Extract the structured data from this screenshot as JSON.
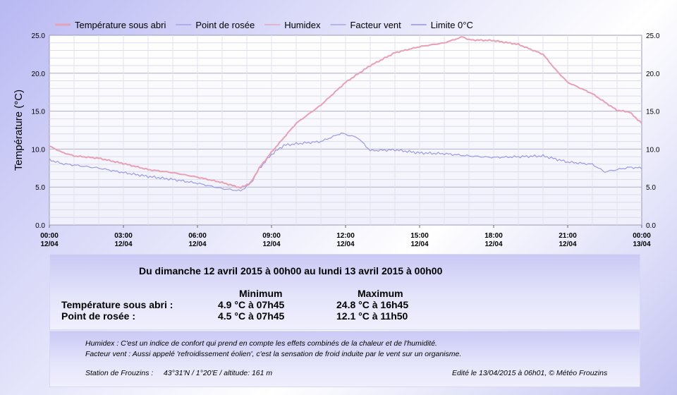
{
  "chart_data": {
    "type": "line",
    "ylabel": "Température (°C)",
    "ylim": [
      0,
      25
    ],
    "ytick_step": 5,
    "yticks": [
      "0.0",
      "5.0",
      "10.0",
      "15.0",
      "20.0",
      "25.0"
    ],
    "x_hours_range": [
      0,
      24
    ],
    "xticks": [
      {
        "time": "00:00",
        "date": "12/04"
      },
      {
        "time": "03:00",
        "date": "12/04"
      },
      {
        "time": "06:00",
        "date": "12/04"
      },
      {
        "time": "09:00",
        "date": "12/04"
      },
      {
        "time": "12:00",
        "date": "12/04"
      },
      {
        "time": "15:00",
        "date": "12/04"
      },
      {
        "time": "18:00",
        "date": "12/04"
      },
      {
        "time": "21:00",
        "date": "12/04"
      },
      {
        "time": "00:00",
        "date": "13/04"
      }
    ],
    "grid": true,
    "legend_position": "top",
    "series": [
      {
        "name": "Température sous abri",
        "color": "#e8a0b4",
        "x": [
          "00:00",
          "00:30",
          "01:00",
          "02:00",
          "03:00",
          "04:00",
          "05:00",
          "06:00",
          "07:00",
          "07:45",
          "08:10",
          "08:30",
          "09:00",
          "09:30",
          "10:00",
          "11:00",
          "12:00",
          "13:00",
          "14:00",
          "15:00",
          "16:00",
          "16:45",
          "17:00",
          "18:00",
          "19:00",
          "20:00",
          "20:30",
          "21:00",
          "22:00",
          "23:00",
          "23:30",
          "24:00"
        ],
        "y": [
          10.4,
          9.6,
          9.1,
          8.8,
          8.1,
          7.3,
          6.9,
          6.3,
          5.6,
          4.9,
          5.6,
          7.5,
          9.6,
          11.5,
          13.4,
          15.8,
          18.8,
          21.0,
          22.7,
          23.5,
          24.0,
          24.8,
          24.4,
          24.3,
          23.8,
          22.5,
          20.5,
          18.8,
          17.3,
          15.1,
          14.9,
          13.4
        ]
      },
      {
        "name": "Point de rosée",
        "color": "#9a9ae6",
        "x": [
          "00:00",
          "00:30",
          "01:00",
          "02:00",
          "03:00",
          "04:00",
          "05:00",
          "06:00",
          "07:00",
          "07:45",
          "08:10",
          "08:30",
          "09:00",
          "09:30",
          "10:00",
          "11:00",
          "11:50",
          "12:30",
          "13:00",
          "14:00",
          "15:00",
          "16:00",
          "17:00",
          "18:00",
          "19:00",
          "20:00",
          "21:00",
          "22:00",
          "22:30",
          "23:00",
          "23:30",
          "24:00"
        ],
        "y": [
          8.6,
          8.1,
          7.9,
          7.5,
          6.9,
          6.4,
          6.0,
          5.5,
          4.8,
          4.5,
          5.5,
          7.4,
          9.3,
          10.5,
          10.7,
          11.0,
          12.1,
          11.5,
          9.8,
          9.9,
          9.5,
          9.4,
          9.1,
          8.9,
          9.0,
          9.1,
          8.3,
          8.0,
          7.0,
          7.3,
          7.6,
          7.5
        ]
      }
    ],
    "legend": [
      {
        "label": "Température sous abri",
        "color": "#e8a0b4",
        "line": "thick"
      },
      {
        "label": "Point de rosée",
        "color": "#9a9ae6",
        "line": "thin"
      },
      {
        "label": "Humidex",
        "color": "#e8a0b4",
        "line": "thin"
      },
      {
        "label": "Facteur vent",
        "color": "#9a9ae6",
        "line": "thin"
      },
      {
        "label": "Limite 0°C",
        "color": "#8080e0",
        "line": "thin"
      }
    ]
  },
  "summary": {
    "period_label": "Du  dimanche 12 avril 2015 à 00h00   au  lundi 13 avril 2015 à 00h00",
    "col_min": "Minimum",
    "col_max": "Maximum",
    "rows": [
      {
        "label": "Température sous abri :",
        "min": "4.9 °C à 07h45",
        "max": "24.8 °C à 16h45"
      },
      {
        "label": "Point de rosée :",
        "min": "4.5 °C à 07h45",
        "max": "12.1 °C à 11h50"
      }
    ]
  },
  "notes": {
    "humidex": "Humidex : C'est un indice de confort qui prend en compte les effets combinés de la chaleur et de l'humidité.",
    "facteur_vent": "Facteur vent : Aussi appelé 'refroidissement éolien', c'est la sensation de froid induite par le vent sur un organisme.",
    "station": "Station de Frouzins :     43°31'N / 1°20'E / altitude: 161 m",
    "edited": "Edité le 13/04/2015 à 06h01, © Météo Frouzins"
  }
}
